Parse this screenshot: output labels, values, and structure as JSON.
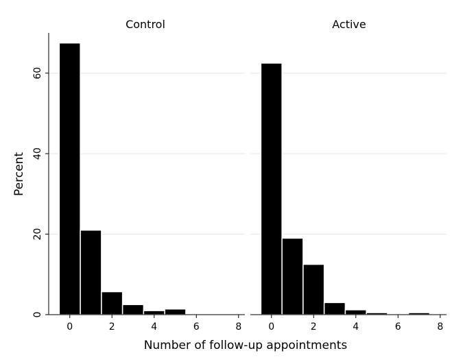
{
  "chart_data": {
    "type": "bar",
    "xlabel": "Number of follow-up appointments",
    "ylabel": "Percent",
    "xlim": [
      -1,
      8.3
    ],
    "ylim": [
      0,
      70
    ],
    "x_ticks": [
      "0",
      "2",
      "4",
      "6",
      "8"
    ],
    "y_ticks": [
      "0",
      "20",
      "40",
      "60"
    ],
    "grid": true,
    "bar_width": 1,
    "panels": [
      {
        "title": "Control",
        "bins": [
          0,
          1,
          2,
          3,
          4,
          5,
          6,
          7
        ],
        "values": [
          67.5,
          21.0,
          5.7,
          2.5,
          1.0,
          1.4,
          0,
          0.2
        ]
      },
      {
        "title": "Active",
        "bins": [
          0,
          1,
          2,
          3,
          4,
          5,
          6,
          7
        ],
        "values": [
          62.5,
          19.0,
          12.5,
          3.0,
          1.2,
          0.5,
          0,
          0.5
        ]
      }
    ]
  }
}
